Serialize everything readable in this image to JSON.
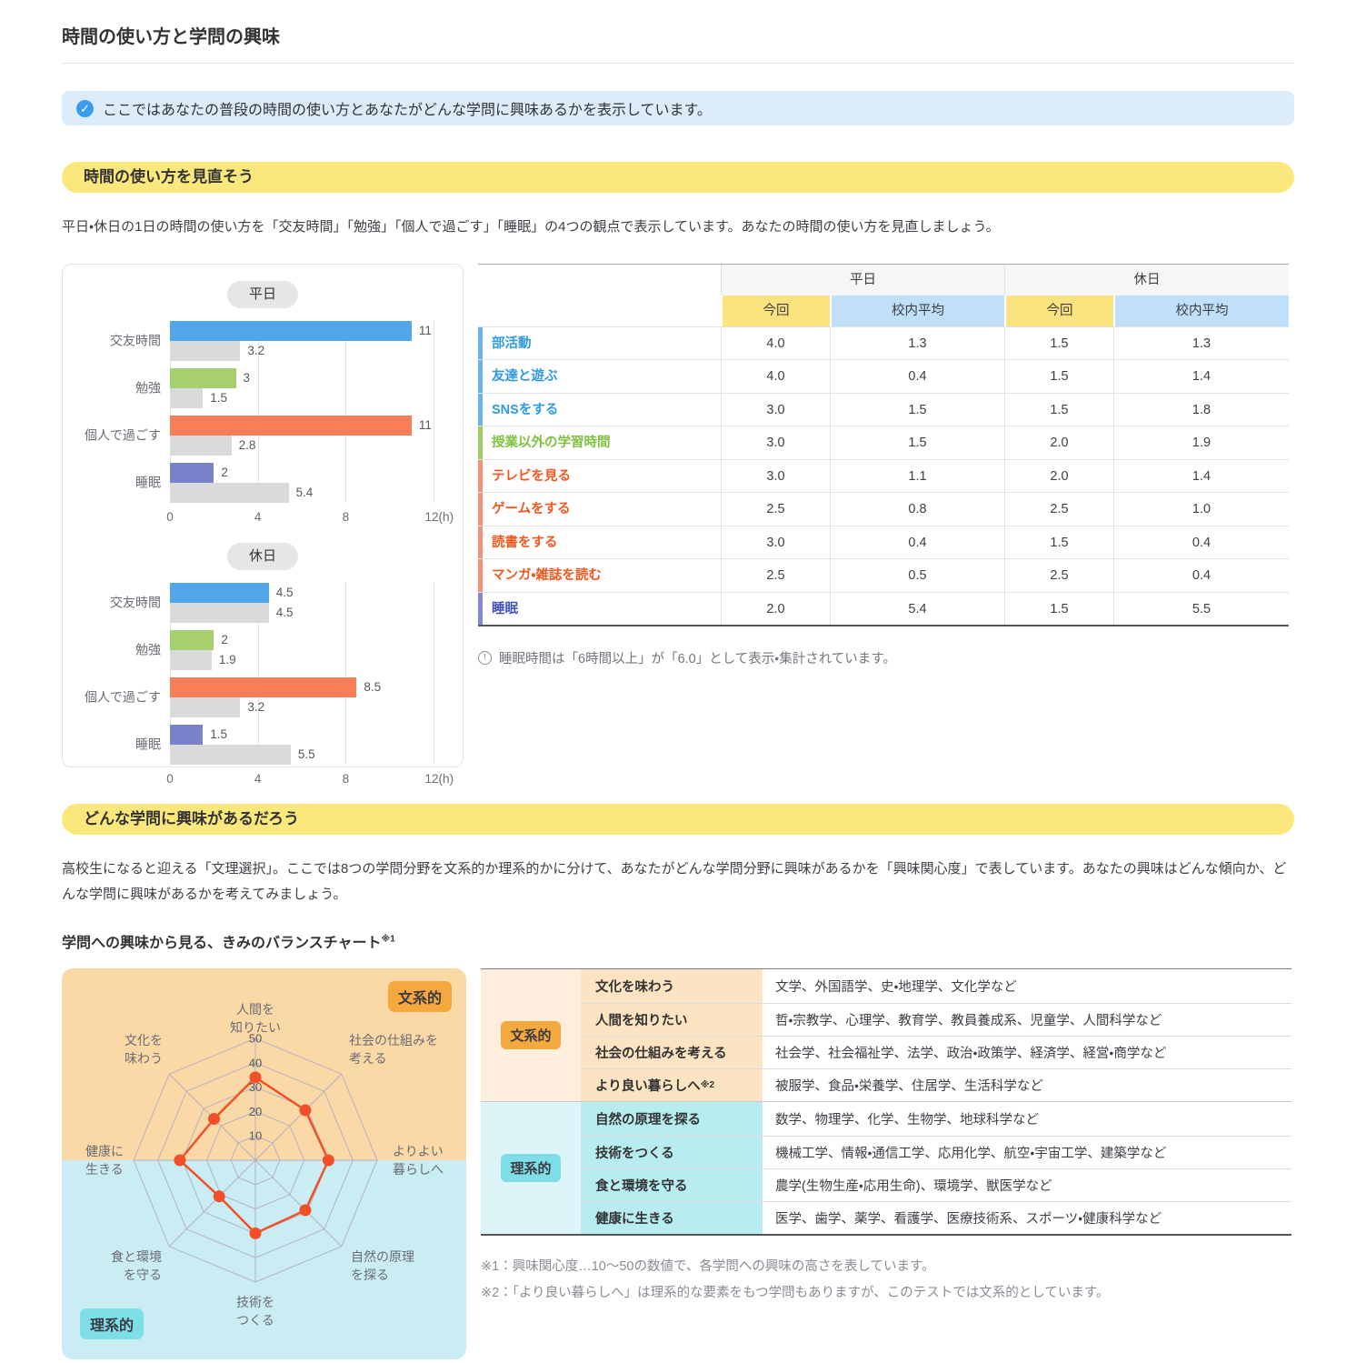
{
  "page": {
    "title": "時間の使い方と学問の興味"
  },
  "banner": {
    "text": "ここではあなたの普段の時間の使い方とあなたがどんな学問に興味あるかを表示しています。",
    "icon": "check-circle"
  },
  "time_section": {
    "header": "時間の使い方を見直そう",
    "desc": "平日・休日の1日の時間の使い方を「交友時間」「勉強」「個人で過ごす」「睡眠」の4つの観点で表示しています。あなたの時間の使い方を見直しましょう。",
    "note": "睡眠時間は「6時間以上」が「6.0」として表示・集計されています。",
    "table": {
      "col_groups": [
        "平日",
        "休日"
      ],
      "sub_cols": [
        "今回",
        "校内平均",
        "今回",
        "校内平均"
      ],
      "rows": [
        {
          "label": "部活動",
          "color": "blue",
          "values": [
            "4.0",
            "1.3",
            "1.5",
            "1.3"
          ]
        },
        {
          "label": "友達と遊ぶ",
          "color": "blue",
          "values": [
            "4.0",
            "0.4",
            "1.5",
            "1.4"
          ]
        },
        {
          "label": "SNSをする",
          "color": "blue",
          "values": [
            "3.0",
            "1.5",
            "1.5",
            "1.8"
          ]
        },
        {
          "label": "授業以外の学習時間",
          "color": "green",
          "values": [
            "3.0",
            "1.5",
            "2.0",
            "1.9"
          ]
        },
        {
          "label": "テレビを見る",
          "color": "orange",
          "values": [
            "3.0",
            "1.1",
            "2.0",
            "1.4"
          ]
        },
        {
          "label": "ゲームをする",
          "color": "orange",
          "values": [
            "2.5",
            "0.8",
            "2.5",
            "1.0"
          ]
        },
        {
          "label": "読書をする",
          "color": "orange",
          "values": [
            "3.0",
            "0.4",
            "1.5",
            "0.4"
          ]
        },
        {
          "label": "マンガ・雑誌を読む",
          "color": "orange",
          "values": [
            "2.5",
            "0.5",
            "2.5",
            "0.4"
          ]
        },
        {
          "label": "睡眠",
          "color": "purple",
          "values": [
            "2.0",
            "5.4",
            "1.5",
            "5.5"
          ]
        }
      ]
    }
  },
  "interest_section": {
    "header": "どんな学問に興味があるだろう",
    "desc": "高校生になると迎える「文理選択」。ここでは8つの学問分野を文系的か理系的かに分けて、あなたがどんな学問分野に興味があるかを「興味関心度」で表しています。あなたの興味はどんな傾向か、どんな学問に興味があるかを考えてみましょう。",
    "subtitle": "学問への興味から見る、きみのバランスチャート",
    "subtitle_sup": "※1",
    "bunkei_badge": "文系的",
    "rikei_badge": "理系的",
    "fields_table": {
      "groups": [
        {
          "badge": "文系的",
          "key": "bunkei",
          "rows": [
            {
              "category": "文化を味わう",
              "sup": "",
              "fields": "文学、外国語学、史・地理学、文化学など"
            },
            {
              "category": "人間を知りたい",
              "sup": "",
              "fields": "哲・宗教学、心理学、教育学、教員養成系、児童学、人間科学など"
            },
            {
              "category": "社会の仕組みを考える",
              "sup": "",
              "fields": "社会学、社会福祉学、法学、政治・政策学、経済学、経営・商学など"
            },
            {
              "category": "より良い暮らしへ",
              "sup": "※2",
              "fields": "被服学、食品・栄養学、住居学、生活科学など"
            }
          ]
        },
        {
          "badge": "理系的",
          "key": "rikei",
          "rows": [
            {
              "category": "自然の原理を探る",
              "sup": "",
              "fields": "数学、物理学、化学、生物学、地球科学など"
            },
            {
              "category": "技術をつくる",
              "sup": "",
              "fields": "機械工学、情報・通信工学、応用化学、航空・宇宙工学、建築学など"
            },
            {
              "category": "食と環境を守る",
              "sup": "",
              "fields": "農学(生物生産・応用生命)、環境学、獣医学など"
            },
            {
              "category": "健康に生きる",
              "sup": "",
              "fields": "医学、歯学、薬学、看護学、医療技術系、スポーツ・健康科学など"
            }
          ]
        }
      ]
    },
    "footnotes": [
      "※1：興味関心度…10〜50の数値で、各学問への興味の高さを表しています。",
      "※2：「より良い暮らしへ」は理系的な要素をもつ学問もありますが、このテストでは文系的としています。"
    ]
  },
  "chart_data": [
    {
      "id": "weekday",
      "type": "bar",
      "title": "平日",
      "categories": [
        "交友時間",
        "勉強",
        "個人で過ごす",
        "睡眠"
      ],
      "series": [
        {
          "name": "今回",
          "values": [
            11,
            3,
            11,
            2
          ],
          "labels": [
            "11",
            "3",
            "11",
            "2"
          ]
        },
        {
          "name": "校内平均",
          "values": [
            3.2,
            1.5,
            2.8,
            5.4
          ],
          "labels": [
            "3.2",
            "1.5",
            "2.8",
            "5.4"
          ]
        }
      ],
      "xlim": [
        0,
        12
      ],
      "ticks": [
        0,
        4,
        8,
        12
      ],
      "unit": "(h)",
      "bar_colors": [
        "blue",
        "green",
        "orange",
        "purple"
      ]
    },
    {
      "id": "holiday",
      "type": "bar",
      "title": "休日",
      "categories": [
        "交友時間",
        "勉強",
        "個人で過ごす",
        "睡眠"
      ],
      "series": [
        {
          "name": "今回",
          "values": [
            4.5,
            2,
            8.5,
            1.5
          ],
          "labels": [
            "4.5",
            "2",
            "8.5",
            "1.5"
          ]
        },
        {
          "name": "校内平均",
          "values": [
            4.5,
            1.9,
            3.2,
            5.5
          ],
          "labels": [
            "4.5",
            "1.9",
            "3.2",
            "5.5"
          ]
        }
      ],
      "xlim": [
        0,
        12
      ],
      "ticks": [
        0,
        4,
        8,
        12
      ],
      "unit": "(h)",
      "bar_colors": [
        "blue",
        "green",
        "orange",
        "purple"
      ]
    },
    {
      "id": "balance",
      "type": "radar",
      "title": "学問への興味から見る、きみのバランスチャート",
      "axes": [
        "人間を\n知りたい",
        "社会の仕組みを\n考える",
        "よりよい\n暮らしへ",
        "自然の原理\nを探る",
        "技術を\nつくる",
        "食と環境\nを守る",
        "健康に\n生きる",
        "文化を\n味わう"
      ],
      "values": [
        34,
        29,
        30,
        29,
        30,
        21,
        31,
        24
      ],
      "rings": [
        10,
        20,
        30,
        40,
        50
      ],
      "max": 50,
      "top_label": "文系的",
      "bottom_label": "理系的"
    }
  ],
  "colors": {
    "bar_blue": "#51a7e9",
    "bar_green": "#a7cf6d",
    "bar_orange": "#f97e57",
    "bar_purple": "#7a82ca",
    "bar_avg": "#dadada",
    "label_blue": "#2e9ae2",
    "label_green": "#7fc241",
    "label_orange": "#f2571f",
    "label_purple": "#4052bd",
    "marker_blue": "#6cb3ea",
    "marker_green": "#9fcc63",
    "marker_orange": "#f4917a",
    "marker_purple": "#8289d2",
    "header_now_bg": "#fbe47f",
    "header_avg_bg": "#bfe0f8",
    "radar_top_bg": "#fbd9a7",
    "radar_bottom_bg": "#c9edf2",
    "radar_grid": "#b6b0c4",
    "radar_line": "#f1502a",
    "bunkei_badge_bg": "#f5a83e",
    "rikei_badge_bg": "#7edee7",
    "bunkei_col1_bg": "#fdeedd",
    "bunkei_col2_bg": "#fce3c1",
    "rikei_col1_bg": "#ddf5f8",
    "rikei_col2_bg": "#b7ecf1"
  }
}
